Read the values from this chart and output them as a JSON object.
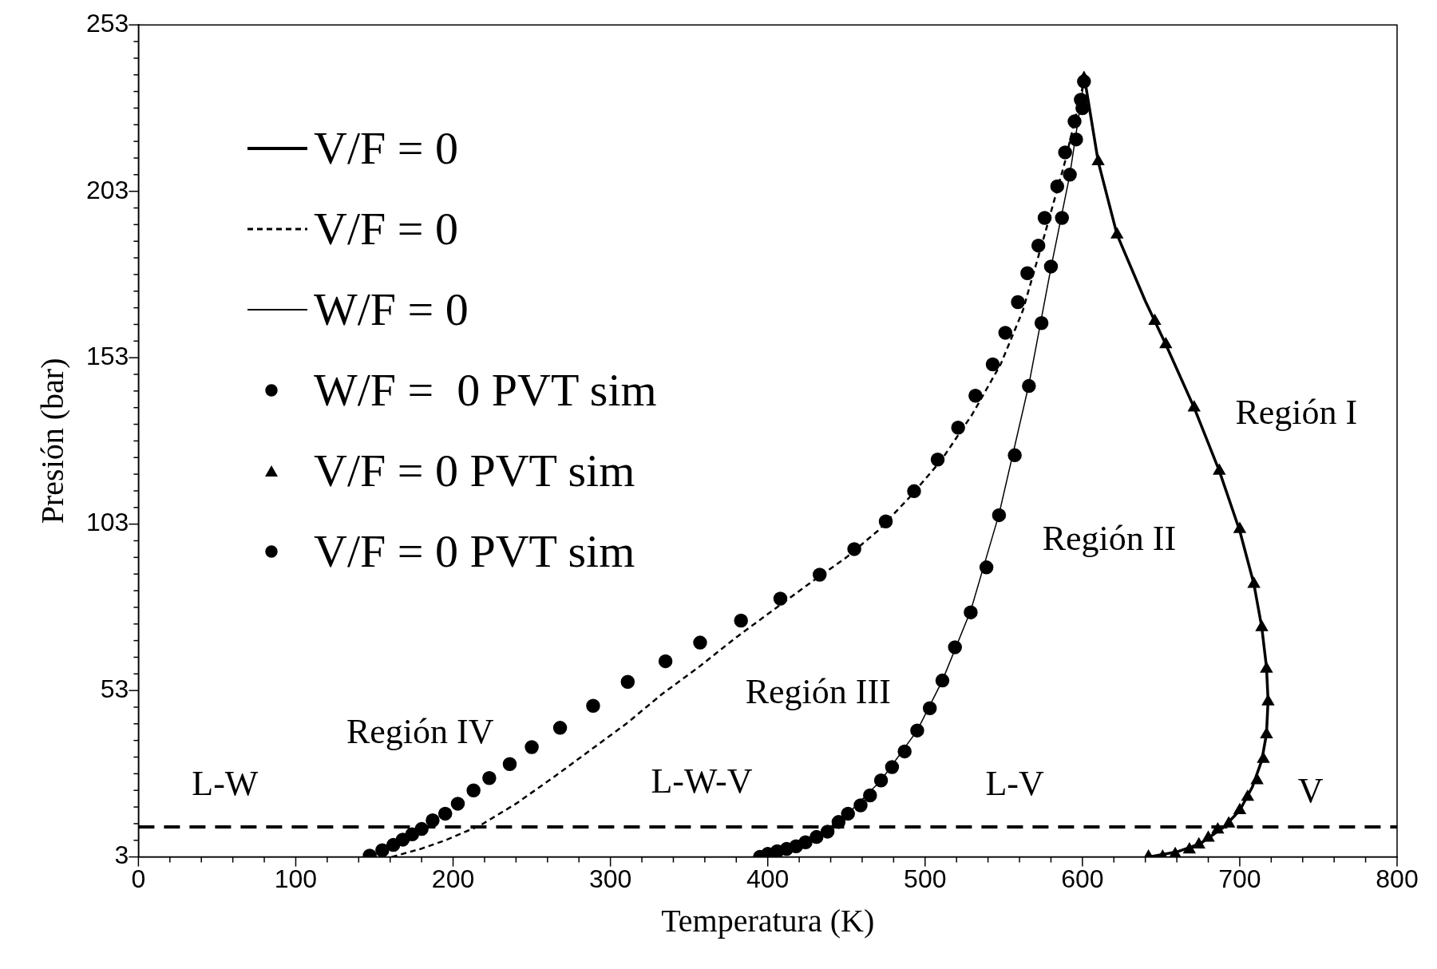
{
  "chart_data": {
    "type": "line",
    "xlabel": "Temperatura (K)",
    "ylabel": "Presión (bar)",
    "legend": "top left",
    "xlim": [
      0,
      800
    ],
    "ylim": [
      3,
      253
    ],
    "xticks": [
      0,
      {
        "value": 20,
        "label": null
      },
      {
        "value": 40,
        "label": null
      },
      {
        "value": 60,
        "label": null
      },
      {
        "value": 80,
        "label": null
      },
      100,
      {
        "value": 120,
        "label": null
      },
      {
        "value": 140,
        "label": null
      },
      {
        "value": 160,
        "label": null
      },
      {
        "value": 180,
        "label": null
      },
      200,
      {
        "value": 220,
        "label": null
      },
      {
        "value": 240,
        "label": null
      },
      {
        "value": 260,
        "label": null
      },
      {
        "value": 280,
        "label": null
      },
      300,
      {
        "value": 320,
        "label": null
      },
      {
        "value": 340,
        "label": null
      },
      {
        "value": 360,
        "label": null
      },
      {
        "value": 380,
        "label": null
      },
      400,
      {
        "value": 420,
        "label": null
      },
      {
        "value": 440,
        "label": null
      },
      {
        "value": 460,
        "label": null
      },
      {
        "value": 480,
        "label": null
      },
      500,
      {
        "value": 520,
        "label": null
      },
      {
        "value": 540,
        "label": null
      },
      {
        "value": 560,
        "label": null
      },
      {
        "value": 580,
        "label": null
      },
      600,
      {
        "value": 620,
        "label": null
      },
      {
        "value": 640,
        "label": null
      },
      {
        "value": 660,
        "label": null
      },
      {
        "value": 680,
        "label": null
      },
      700,
      {
        "value": 720,
        "label": null
      },
      {
        "value": 740,
        "label": null
      },
      {
        "value": 760,
        "label": null
      },
      {
        "value": 780,
        "label": null
      },
      800
    ],
    "yticks": [
      3,
      {
        "value": 8,
        "label": null
      },
      {
        "value": 13,
        "label": null
      },
      {
        "value": 18,
        "label": null
      },
      {
        "value": 23,
        "label": null
      },
      {
        "value": 28,
        "label": null
      },
      {
        "value": 33,
        "label": null
      },
      {
        "value": 38,
        "label": null
      },
      {
        "value": 43,
        "label": null
      },
      {
        "value": 48,
        "label": null
      },
      53,
      {
        "value": 58,
        "label": null
      },
      {
        "value": 63,
        "label": null
      },
      {
        "value": 68,
        "label": null
      },
      {
        "value": 73,
        "label": null
      },
      {
        "value": 78,
        "label": null
      },
      {
        "value": 83,
        "label": null
      },
      {
        "value": 88,
        "label": null
      },
      {
        "value": 93,
        "label": null
      },
      {
        "value": 98,
        "label": null
      },
      103,
      {
        "value": 108,
        "label": null
      },
      {
        "value": 113,
        "label": null
      },
      {
        "value": 118,
        "label": null
      },
      {
        "value": 123,
        "label": null
      },
      {
        "value": 128,
        "label": null
      },
      {
        "value": 133,
        "label": null
      },
      {
        "value": 138,
        "label": null
      },
      {
        "value": 143,
        "label": null
      },
      {
        "value": 148,
        "label": null
      },
      153,
      {
        "value": 158,
        "label": null
      },
      {
        "value": 163,
        "label": null
      },
      {
        "value": 168,
        "label": null
      },
      {
        "value": 173,
        "label": null
      },
      {
        "value": 178,
        "label": null
      },
      {
        "value": 183,
        "label": null
      },
      {
        "value": 188,
        "label": null
      },
      {
        "value": 193,
        "label": null
      },
      {
        "value": 198,
        "label": null
      },
      203,
      {
        "value": 208,
        "label": null
      },
      {
        "value": 213,
        "label": null
      },
      {
        "value": 218,
        "label": null
      },
      {
        "value": 223,
        "label": null
      },
      {
        "value": 228,
        "label": null
      },
      {
        "value": 233,
        "label": null
      },
      {
        "value": 238,
        "label": null
      },
      {
        "value": 243,
        "label": null
      },
      {
        "value": 248,
        "label": null
      },
      253
    ],
    "ref_lines": [
      {
        "axis": "y",
        "value": 12,
        "color": "#000000",
        "line_style": "dashed"
      }
    ],
    "annotations": [
      "Región I",
      "Región II",
      "Región III",
      "Región IV",
      "L-W",
      "L-W-V",
      "L-V",
      "V"
    ],
    "series": [
      {
        "name": "V/F = 0",
        "color": "#000000",
        "marker": "none",
        "line_style": "solid",
        "x": [
          601,
          610,
          622,
          640,
          653,
          671,
          687,
          700,
          709,
          714,
          717,
          718,
          717,
          714,
          708,
          700,
          690,
          675,
          660,
          642
        ],
        "values": [
          238,
          212,
          190,
          170,
          157,
          138,
          119,
          101,
          85,
          72,
          60,
          50,
          40,
          32,
          24,
          17,
          12,
          7,
          4.5,
          3
        ]
      },
      {
        "name": "V/F = 0",
        "color": "#000000",
        "marker": "none",
        "line_style": "dashed",
        "x": [
          161,
          180,
          195,
          217,
          240,
          264,
          287,
          310,
          333,
          356,
          380,
          403,
          426,
          450,
          470,
          490,
          510,
          530,
          548,
          562,
          576,
          589,
          597,
          601
        ],
        "values": [
          3,
          5.5,
          8,
          12.4,
          19,
          27,
          35,
          43,
          52,
          60,
          69,
          77,
          85,
          93,
          101,
          111,
          122,
          136,
          151,
          167,
          190,
          212,
          228,
          236
        ]
      },
      {
        "name": "W/F = 0",
        "color": "#000000",
        "marker": "none",
        "line_style": "solid",
        "x": [
          394,
          412,
          431,
          451,
          472,
          495,
          511,
          529,
          547,
          566,
          580,
          592,
          601
        ],
        "values": [
          3,
          5.5,
          9,
          16,
          26,
          41,
          56,
          77,
          106,
          145,
          180,
          208,
          236
        ]
      },
      {
        "name": "W/F =  0 PVT sim",
        "type": "scatter",
        "color": "#000000",
        "marker": "circle",
        "x": [
          395,
          400,
          406,
          412,
          418,
          424,
          431,
          438,
          445,
          451,
          459,
          465,
          472,
          479,
          487,
          495,
          503,
          511,
          519,
          529,
          539,
          547,
          557,
          566,
          574,
          580,
          587,
          592,
          596,
          600
        ],
        "values": [
          3,
          3.9,
          4.7,
          5.4,
          6.2,
          7.4,
          9,
          10.6,
          13.5,
          16,
          18.5,
          21.5,
          26,
          30,
          34.7,
          41,
          47.7,
          56,
          66,
          76.5,
          90,
          105.7,
          123.7,
          144.5,
          163.4,
          180.4,
          195,
          208,
          218.6,
          228
        ]
      },
      {
        "name": "V/F = 0 PVT sim",
        "type": "scatter",
        "color": "#000000",
        "marker": "triangle",
        "x": [
          601,
          610,
          622,
          646,
          653,
          671,
          687,
          700,
          709,
          714,
          717,
          718,
          717,
          715,
          711,
          705,
          700,
          693,
          686,
          680,
          674,
          668,
          659,
          651,
          642
        ],
        "values": [
          237,
          212,
          190,
          164,
          157,
          138,
          119,
          101.5,
          85,
          72,
          59.5,
          49.7,
          39.8,
          32.4,
          26,
          21,
          17,
          13,
          11.2,
          8.7,
          6.7,
          5.2,
          3.8,
          3,
          3
        ]
      },
      {
        "name": "V/F = 0 PVT sim",
        "type": "scatter",
        "color": "#000000",
        "marker": "circle",
        "x": [
          147,
          155,
          162,
          168,
          174,
          180,
          187,
          195,
          203,
          213,
          223,
          236,
          250,
          268,
          289,
          311,
          335,
          357,
          383,
          408,
          433,
          455,
          475,
          493,
          508,
          521,
          532,
          543,
          551,
          559,
          565,
          572,
          576,
          584,
          589,
          595,
          599,
          601
        ],
        "values": [
          3.4,
          5,
          6.6,
          8.2,
          9.8,
          11.4,
          14,
          16,
          19,
          23,
          26.7,
          30.9,
          36,
          41.8,
          48.4,
          55.6,
          61.8,
          67.4,
          74,
          80.6,
          87.8,
          95.5,
          103.8,
          112.9,
          122.4,
          132,
          141.6,
          151,
          160.5,
          169.7,
          178.4,
          186.7,
          195,
          204.5,
          214.7,
          224,
          230.5,
          236
        ]
      }
    ]
  }
}
